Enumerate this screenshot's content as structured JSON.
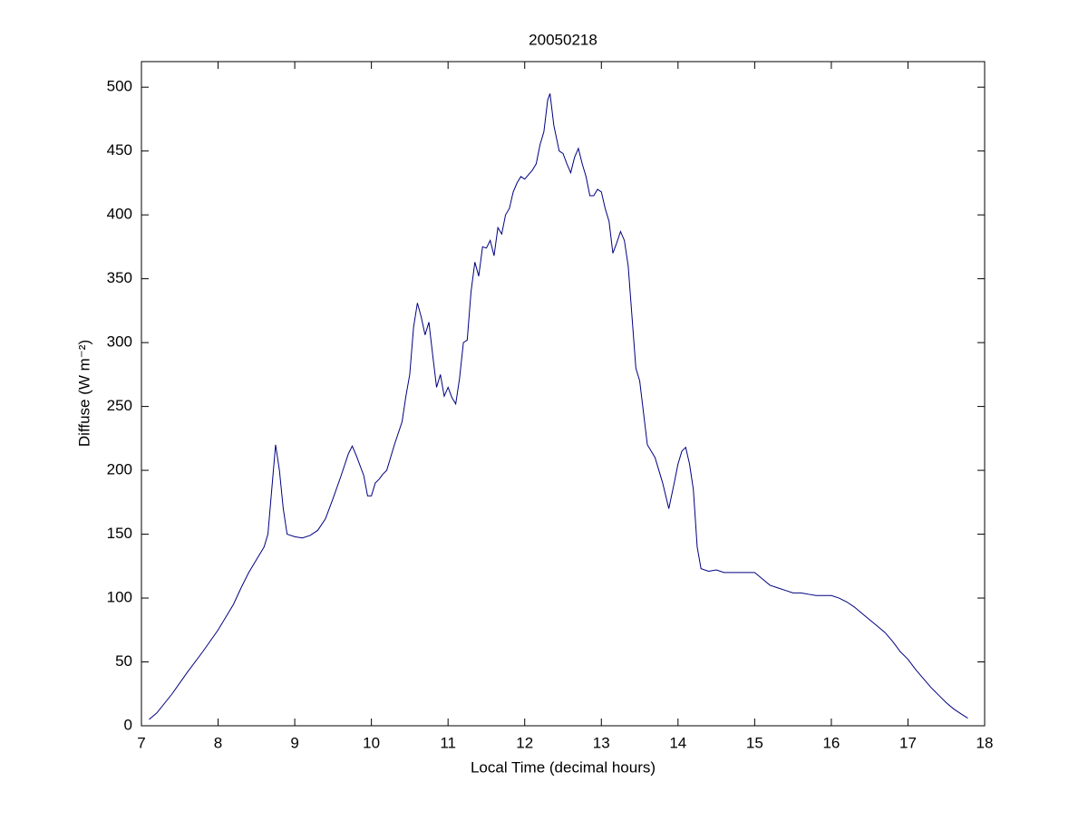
{
  "chart_data": {
    "type": "line",
    "title": "20050218",
    "x_label": "Local Time (decimal hours)",
    "y_label": "Diffuse (W m⁻²)",
    "x": [
      7.1,
      7.2,
      7.4,
      7.6,
      7.8,
      8.0,
      8.2,
      8.3,
      8.4,
      8.5,
      8.6,
      8.65,
      8.7,
      8.75,
      8.8,
      8.85,
      8.9,
      9.0,
      9.1,
      9.2,
      9.3,
      9.4,
      9.5,
      9.6,
      9.7,
      9.75,
      9.8,
      9.9,
      9.95,
      10.0,
      10.05,
      10.1,
      10.15,
      10.2,
      10.3,
      10.4,
      10.45,
      10.5,
      10.55,
      10.6,
      10.65,
      10.7,
      10.75,
      10.8,
      10.85,
      10.9,
      10.95,
      11.0,
      11.05,
      11.1,
      11.15,
      11.2,
      11.25,
      11.3,
      11.35,
      11.4,
      11.45,
      11.5,
      11.55,
      11.6,
      11.65,
      11.7,
      11.75,
      11.8,
      11.85,
      11.9,
      11.95,
      12.0,
      12.1,
      12.15,
      12.2,
      12.25,
      12.3,
      12.33,
      12.38,
      12.45,
      12.5,
      12.55,
      12.6,
      12.65,
      12.7,
      12.75,
      12.8,
      12.85,
      12.9,
      12.95,
      13.0,
      13.05,
      13.1,
      13.15,
      13.2,
      13.25,
      13.3,
      13.35,
      13.4,
      13.45,
      13.5,
      13.55,
      13.6,
      13.7,
      13.75,
      13.8,
      13.88,
      13.95,
      14.0,
      14.05,
      14.1,
      14.15,
      14.2,
      14.25,
      14.3,
      14.4,
      14.5,
      14.6,
      14.7,
      14.8,
      14.9,
      15.0,
      15.1,
      15.2,
      15.3,
      15.4,
      15.5,
      15.6,
      15.7,
      15.8,
      15.9,
      16.0,
      16.1,
      16.2,
      16.3,
      16.4,
      16.5,
      16.6,
      16.7,
      16.8,
      16.9,
      17.0,
      17.1,
      17.2,
      17.3,
      17.4,
      17.5,
      17.6,
      17.7,
      17.78
    ],
    "series": [
      {
        "color": "#000080",
        "values": [
          5,
          10,
          25,
          42,
          58,
          75,
          95,
          108,
          120,
          130,
          140,
          150,
          185,
          220,
          200,
          170,
          150,
          148,
          147,
          149,
          153,
          162,
          178,
          195,
          213,
          219,
          212,
          196,
          180,
          180,
          190,
          193,
          197,
          200,
          220,
          238,
          258,
          275,
          312,
          331,
          320,
          306,
          316,
          290,
          265,
          275,
          258,
          265,
          257,
          252,
          272,
          300,
          302,
          340,
          363,
          352,
          375,
          374,
          380,
          368,
          390,
          385,
          400,
          405,
          418,
          425,
          430,
          428,
          435,
          440,
          455,
          465,
          490,
          495,
          470,
          450,
          448,
          440,
          433,
          445,
          452,
          440,
          430,
          415,
          415,
          420,
          418,
          405,
          395,
          370,
          378,
          387,
          380,
          360,
          320,
          280,
          270,
          245,
          220,
          210,
          200,
          190,
          170,
          190,
          205,
          215,
          218,
          205,
          185,
          140,
          123,
          121,
          122,
          120,
          120,
          120,
          120,
          120,
          115,
          110,
          108,
          106,
          104,
          104,
          103,
          102,
          102,
          102,
          100,
          97,
          93,
          88,
          83,
          78,
          73,
          66,
          58,
          52,
          44,
          37,
          30,
          24,
          18,
          13,
          9,
          6
        ]
      }
    ],
    "xlim": [
      7,
      18
    ],
    "ylim": [
      0,
      520
    ],
    "xticks": [
      7,
      8,
      9,
      10,
      11,
      12,
      13,
      14,
      15,
      16,
      17,
      18
    ],
    "yticks": [
      0,
      50,
      100,
      150,
      200,
      250,
      300,
      350,
      400,
      450,
      500
    ]
  }
}
